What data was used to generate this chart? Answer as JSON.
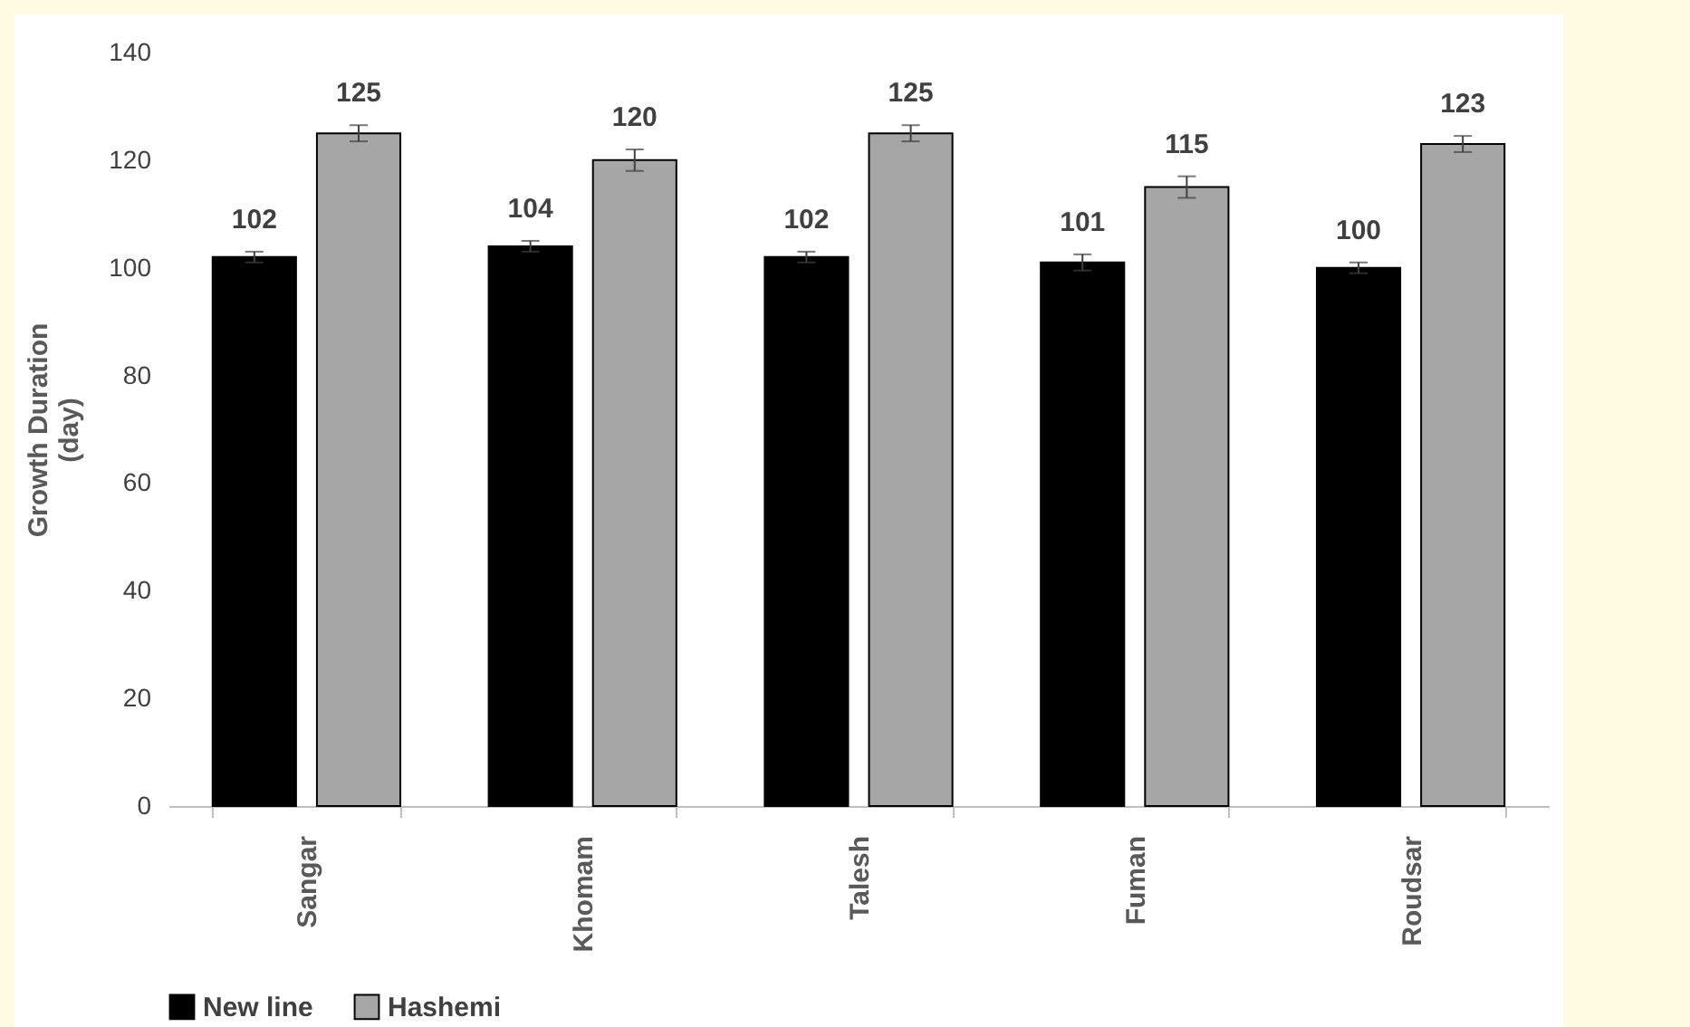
{
  "chart_data": {
    "type": "bar",
    "ylabel": "Growth Duration\n(day)",
    "categories": [
      "Sangar",
      "Khomam",
      "Talesh",
      "Fuman",
      "Roudsar"
    ],
    "series": [
      {
        "name": "New line",
        "color": "#000000",
        "values": [
          102,
          104,
          102,
          101,
          100
        ],
        "errors": [
          1,
          1,
          1,
          1.5,
          1
        ]
      },
      {
        "name": "Hashemi",
        "color": "#a6a6a6",
        "values": [
          125,
          120,
          125,
          115,
          123
        ],
        "errors": [
          1.5,
          2,
          1.5,
          2,
          1.5
        ]
      }
    ],
    "ylim": [
      0,
      140
    ],
    "yticks": [
      0,
      20,
      40,
      60,
      80,
      100,
      120,
      140
    ],
    "grid": false,
    "legend": "bottom",
    "data_labels": true
  }
}
